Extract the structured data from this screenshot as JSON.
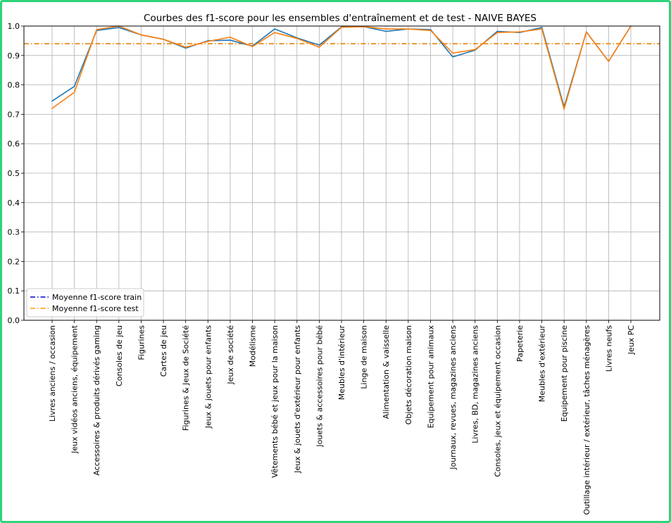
{
  "colors": {
    "border": "#2ed47a",
    "train_line": "#1f77b4",
    "test_line": "#ff7f0e",
    "mean_train": "#0000cc",
    "mean_test": "#ff9900",
    "grid": "#b0b0b0"
  },
  "chart_data": {
    "type": "line",
    "title": "Courbes des f1-score pour les ensembles d'entraînement et de test - NAIVE BAYES",
    "xlabel": "",
    "ylabel": "",
    "ylim": [
      0.0,
      1.0
    ],
    "yticks": [
      "0.0",
      "0.1",
      "0.2",
      "0.3",
      "0.4",
      "0.5",
      "0.6",
      "0.7",
      "0.8",
      "0.9",
      "1.0"
    ],
    "grid": true,
    "legend_position": "lower-left",
    "categories": [
      "Livres anciens / occasion",
      "Jeux vidéos anciens, équipement",
      "Accessoires & produits dérivés gaming",
      "Consoles de jeu",
      "Figurines",
      "Cartes de jeu",
      "Figurines & Jeux de Société",
      "Jeux & jouets pour enfants",
      "Jeux de société",
      "Modélisme",
      "Vêtements bébé et jeux pour la maison",
      "Jeux & jouets d'extérieur pour enfants",
      "Jouets & accessoires pour bébé",
      "Meubles d'intérieur",
      "Linge de maison",
      "Alimentation & vaisselle",
      "Objets décoration maison",
      "Equipement pour animaux",
      "Journaux, revues, magazines anciens",
      "Livres, BD, magazines anciens",
      "Consoles, jeux et équipement occasion",
      "Papeterie",
      "Meubles d'extérieur",
      "Equipement pour piscine",
      "Outillage intérieur / extérieur, tâches ménagères",
      "Livres neufs",
      "Jeux PC"
    ],
    "series": [
      {
        "key": "train",
        "values": [
          0.745,
          0.795,
          0.985,
          0.995,
          0.97,
          0.955,
          0.925,
          0.95,
          0.952,
          0.932,
          0.99,
          0.96,
          0.935,
          0.997,
          0.998,
          0.982,
          0.99,
          0.988,
          0.895,
          0.918,
          0.982,
          0.978,
          0.995,
          0.725,
          0.98,
          0.88,
          1.0
        ]
      },
      {
        "key": "test",
        "values": [
          0.72,
          0.775,
          0.988,
          1.0,
          0.97,
          0.955,
          0.928,
          0.948,
          0.962,
          0.93,
          0.978,
          0.958,
          0.928,
          0.996,
          0.998,
          0.99,
          0.99,
          0.985,
          0.908,
          0.92,
          0.978,
          0.98,
          0.99,
          0.718,
          0.98,
          0.88,
          1.0
        ]
      }
    ],
    "means": [
      {
        "key": "train",
        "label": "Moyenne f1-score train",
        "value": 0.94
      },
      {
        "key": "test",
        "label": "Moyenne f1-score test",
        "value": 0.94
      }
    ]
  }
}
